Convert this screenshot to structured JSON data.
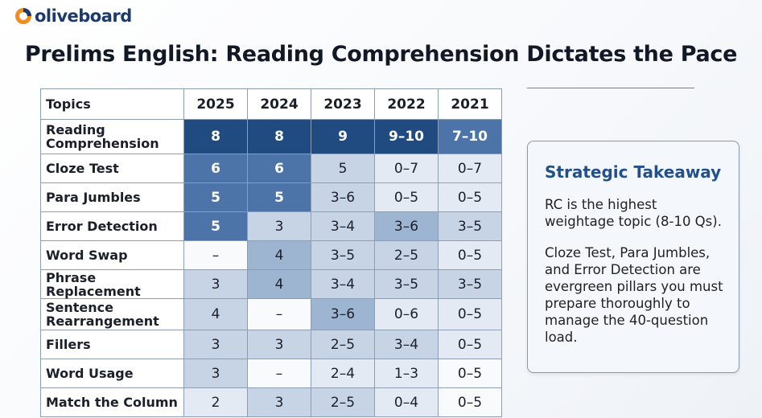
{
  "header": {
    "logo": "oliveboard",
    "title": "Prelims English: Reading Comprehension Dictates the Pace"
  },
  "table": {
    "columns": [
      "Topics",
      "2025",
      "2024",
      "2023",
      "2022",
      "2021"
    ],
    "rows": [
      [
        "Reading Comprehension",
        "8",
        "8",
        "9",
        "9–10",
        "7–10"
      ],
      [
        "Cloze Test",
        "6",
        "6",
        "5",
        "0–7",
        "0–7"
      ],
      [
        "Para Jumbles",
        "5",
        "5",
        "3–6",
        "0–5",
        "0–5"
      ],
      [
        "Error Detection",
        "5",
        "3",
        "3–4",
        "3–6",
        "3–5"
      ],
      [
        "Word Swap",
        "–",
        "4",
        "3–5",
        "2–5",
        "0–5"
      ],
      [
        "Phrase Replacement",
        "3",
        "4",
        "3–4",
        "3–5",
        "3–5"
      ],
      [
        "Sentence Rearrangement",
        "4",
        "–",
        "3–6",
        "0–6",
        "0–5"
      ],
      [
        "Fillers",
        "3",
        "3",
        "2–5",
        "3–4",
        "0–5"
      ],
      [
        "Word Usage",
        "3",
        "–",
        "2–4",
        "1–3",
        "0–5"
      ],
      [
        "Match the Column",
        "2",
        "3",
        "2–5",
        "0–4",
        "0–5"
      ]
    ]
  },
  "takeaway": {
    "title": "Strategic Takeaway",
    "paragraphs": [
      "RC is the highest weightage topic (8-10 Qs).",
      "Cloze Test, Para Jumbles, and Error Detection are evergreen pillars you must prepare thoroughly to manage the 40-question load."
    ]
  }
}
